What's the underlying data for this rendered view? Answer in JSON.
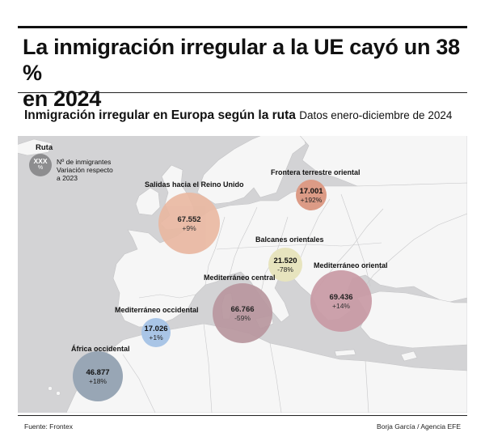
{
  "headline": {
    "line1": "La inmigración irregular a la UE cayó un 38 %",
    "line2": "en 2024"
  },
  "subtitle": {
    "main": "Inmigración irregular en Europa según la ruta",
    "dates": "Datos enero-diciembre de 2024"
  },
  "legend": {
    "title": "Ruta",
    "symbol_count": "XXX",
    "symbol_pct": "%",
    "line1": "Nº de inmigrantes",
    "line2": "Variación respecto",
    "line3": "a 2023"
  },
  "routes": [
    {
      "name": "Salidas hacia el Reino Unido",
      "count": "67.552",
      "change": "+9%",
      "color": "#e9b8a2"
    },
    {
      "name": "Frontera terrestre oriental",
      "count": "17.001",
      "change": "+192%",
      "color": "#dc9b86"
    },
    {
      "name": "Balcanes orientales",
      "count": "21.520",
      "change": "-78%",
      "color": "#e7e4be"
    },
    {
      "name": "Mediterráneo oriental",
      "count": "69.436",
      "change": "+14%",
      "color": "#c99aa5"
    },
    {
      "name": "Mediterráneo central",
      "count": "66.766",
      "change": "-59%",
      "color": "#b9979f"
    },
    {
      "name": "Mediterráneo occidental",
      "count": "17.026",
      "change": "+1%",
      "color": "#a9c5e6"
    },
    {
      "name": "África occidental",
      "count": "46.877",
      "change": "+18%",
      "color": "#98a6b5"
    }
  ],
  "footer": {
    "source": "Fuente: Frontex",
    "credit": "Borja García / Agencia EFE"
  }
}
